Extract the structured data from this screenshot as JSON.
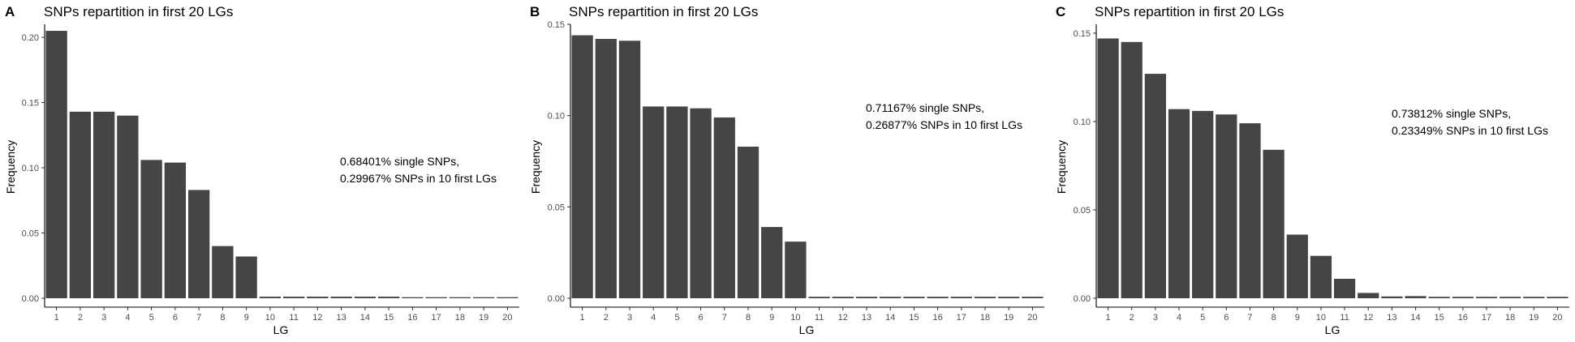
{
  "bar_color": "#454545",
  "chart_data": [
    {
      "type": "bar",
      "panel_label": "A",
      "title": "SNPs repartition in first 20 LGs",
      "xlabel": "LG",
      "ylabel": "Frequency",
      "ylim": [
        0,
        0.21
      ],
      "yticks": [
        0.0,
        0.05,
        0.1,
        0.15,
        0.2
      ],
      "ytick_labels": [
        "0.00",
        "0.05",
        "0.10",
        "0.15",
        "0.20"
      ],
      "categories": [
        "1",
        "2",
        "3",
        "4",
        "5",
        "6",
        "7",
        "8",
        "9",
        "10",
        "11",
        "12",
        "13",
        "14",
        "15",
        "16",
        "17",
        "18",
        "19",
        "20"
      ],
      "values": [
        0.205,
        0.143,
        0.143,
        0.14,
        0.106,
        0.104,
        0.083,
        0.04,
        0.032,
        0.0012,
        0.0012,
        0.0012,
        0.0012,
        0.0012,
        0.0012,
        0.0008,
        0.0008,
        0.0008,
        0.0008,
        0.0008
      ],
      "annotation": [
        "0.68401% single SNPs,",
        "0.29967% SNPs in 10 first LGs"
      ],
      "grid": false
    },
    {
      "type": "bar",
      "panel_label": "B",
      "title": "SNPs repartition in first 20 LGs",
      "xlabel": "LG",
      "ylabel": "Frequency",
      "ylim": [
        0,
        0.15
      ],
      "yticks": [
        0.0,
        0.05,
        0.1,
        0.15
      ],
      "ytick_labels": [
        "0.00",
        "0.05",
        "0.10",
        "0.15"
      ],
      "categories": [
        "1",
        "2",
        "3",
        "4",
        "5",
        "6",
        "7",
        "8",
        "9",
        "10",
        "11",
        "12",
        "13",
        "14",
        "15",
        "16",
        "17",
        "18",
        "19",
        "20"
      ],
      "values": [
        0.144,
        0.142,
        0.141,
        0.105,
        0.105,
        0.104,
        0.099,
        0.083,
        0.039,
        0.031,
        0.0008,
        0.0008,
        0.0008,
        0.0008,
        0.0008,
        0.0008,
        0.0008,
        0.0008,
        0.0008,
        0.0008
      ],
      "annotation": [
        "0.71167% single SNPs,",
        "0.26877% SNPs in 10 first LGs"
      ],
      "grid": false
    },
    {
      "type": "bar",
      "panel_label": "C",
      "title": "SNPs repartition in first 20 LGs",
      "xlabel": "LG",
      "ylabel": "Frequency",
      "ylim": [
        0,
        0.155
      ],
      "yticks": [
        0.0,
        0.05,
        0.1,
        0.15
      ],
      "ytick_labels": [
        "0.00",
        "0.05",
        "0.10",
        "0.15"
      ],
      "categories": [
        "1",
        "2",
        "3",
        "4",
        "5",
        "6",
        "7",
        "8",
        "9",
        "10",
        "11",
        "12",
        "13",
        "14",
        "15",
        "16",
        "17",
        "18",
        "19",
        "20"
      ],
      "values": [
        0.147,
        0.145,
        0.127,
        0.107,
        0.106,
        0.104,
        0.099,
        0.084,
        0.036,
        0.024,
        0.011,
        0.003,
        0.001,
        0.0012,
        0.0008,
        0.0008,
        0.0008,
        0.0008,
        0.0008,
        0.0008
      ],
      "annotation": [
        "0.73812% single SNPs,",
        "0.23349% SNPs in 10 first LGs"
      ],
      "grid": false
    }
  ]
}
